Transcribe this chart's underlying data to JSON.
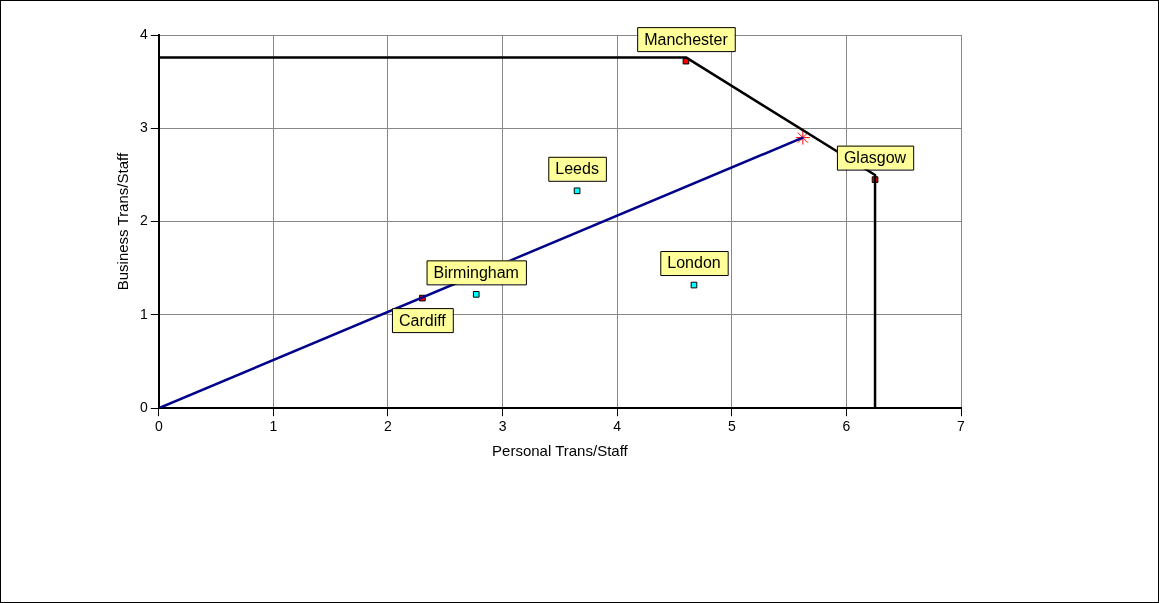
{
  "chart_data": {
    "type": "scatter",
    "xlabel": "Personal Trans/Staff",
    "ylabel": "Business Trans/Staff",
    "xlim": [
      0,
      7
    ],
    "ylim": [
      0,
      4
    ],
    "xticks": [
      0,
      1,
      2,
      3,
      4,
      5,
      6,
      7
    ],
    "yticks": [
      0,
      1,
      2,
      3,
      4
    ],
    "grid": true,
    "legend": false,
    "series": [
      {
        "type": "line",
        "color": "#000000",
        "x": [
          0,
          4.6,
          6.25,
          6.25
        ],
        "values": [
          3.76,
          3.76,
          2.5,
          0
        ],
        "marker": "none"
      },
      {
        "type": "line",
        "color": "#00008b",
        "x": [
          0,
          5.62
        ],
        "values": [
          0,
          2.9
        ],
        "marker": "none"
      },
      {
        "type": "scatter",
        "color": "#ff0000",
        "x": [
          4.6,
          6.25,
          2.3
        ],
        "values": [
          3.72,
          2.45,
          1.18
        ],
        "marker": "square"
      },
      {
        "type": "scatter",
        "color": "#00ffff",
        "x": [
          3.65,
          2.77,
          4.67
        ],
        "values": [
          2.33,
          1.22,
          1.32
        ],
        "marker": "square"
      },
      {
        "type": "scatter",
        "color": "#ff0000",
        "x": [
          5.62
        ],
        "values": [
          2.9
        ],
        "marker": "cross"
      }
    ],
    "annotations": [
      {
        "text": "Manchester",
        "x": 4.6,
        "y": 3.72
      },
      {
        "text": "Glasgow",
        "x": 6.25,
        "y": 2.45
      },
      {
        "text": "Leeds",
        "x": 3.65,
        "y": 2.33
      },
      {
        "text": "Birmingham",
        "x": 2.77,
        "y": 1.22
      },
      {
        "text": "London",
        "x": 4.67,
        "y": 1.32
      },
      {
        "text": "Cardiff",
        "x": 2.3,
        "y": 1.18
      }
    ]
  }
}
